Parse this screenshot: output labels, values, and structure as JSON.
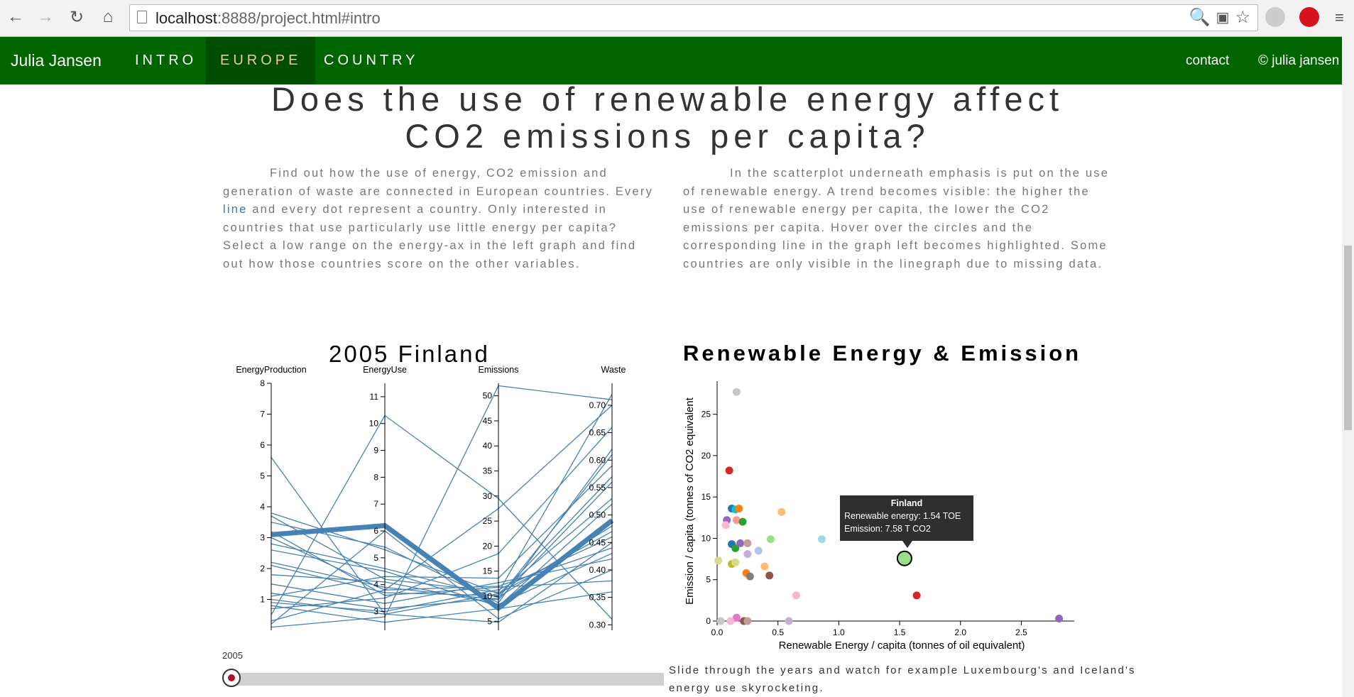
{
  "browser": {
    "url_host": "localhost",
    "url_rest": ":8888/project.html#intro"
  },
  "nav": {
    "brand": "Julia Jansen",
    "links": [
      "INTRO",
      "EUROPE",
      "COUNTRY"
    ],
    "active": "EUROPE",
    "contact": "contact",
    "copyright": "© julia jansen"
  },
  "page": {
    "title_line1": "Does the use of renewable energy affect",
    "title_line2": "CO2 emissions per capita?",
    "intro_left_1": "Find out how the use of energy, CO2 emission and generation of waste are connected in European countries. Every ",
    "intro_left_link": "line",
    "intro_left_2": " and every dot represent a country. Only interested in countries that use particularly use little energy per capita? Select a low range on the energy-ax in the left graph and find out how those countries score on the other variables.",
    "intro_right": "In the scatterplot underneath emphasis is put on the use of renewable energy. A trend becomes visible: the higher the use of renewable energy per capita, the lower the CO2 emissions per capita. Hover over the circles and the corresponding line in the graph left becomes highlighted. Some countries are only visible in the linegraph due to missing data.",
    "left_heading": "2005 Finland",
    "right_heading": "Renewable Energy & Emission",
    "slider_year": "2005",
    "slide_note_1": "Slide through the years and watch for example Luxembourg's and Iceland's",
    "slide_note_2": "energy use skyrocketing."
  },
  "tooltip": {
    "name": "Finland",
    "line1": "Renewable energy: 1.54 TOE",
    "line2": "Emission: 7.58 T CO2"
  },
  "chart_data": [
    {
      "type": "line",
      "subtype": "parallel-coordinates",
      "axes": [
        {
          "name": "EnergyProduction",
          "ticks": [
            1,
            2,
            3,
            4,
            5,
            6,
            7,
            8
          ],
          "range": [
            0,
            8
          ]
        },
        {
          "name": "EnergyUse",
          "ticks": [
            3,
            4,
            5,
            6,
            7,
            8,
            9,
            10,
            11
          ],
          "range": [
            2.3,
            11.5
          ]
        },
        {
          "name": "Emissions",
          "ticks": [
            5,
            10,
            15,
            20,
            25,
            30,
            35,
            40,
            45,
            50
          ],
          "range": [
            3.2,
            52.5
          ]
        },
        {
          "name": "Waste",
          "ticks": [
            "0.30",
            "0.35",
            "0.40",
            "0.45",
            "0.50",
            "0.55",
            "0.60",
            "0.65",
            "0.70"
          ],
          "range": [
            0.29,
            0.74
          ]
        }
      ],
      "highlighted": {
        "name": "Finland",
        "values": [
          3.1,
          6.2,
          7.6,
          0.49
        ]
      },
      "lines": [
        [
          5.6,
          2.9,
          4.8,
          0.45
        ],
        [
          3.8,
          5.3,
          10.5,
          0.53
        ],
        [
          3.7,
          4.2,
          10.8,
          0.72
        ],
        [
          3.5,
          5.4,
          8.7,
          0.62
        ],
        [
          3.2,
          3.6,
          11.8,
          0.38
        ],
        [
          3.0,
          3.8,
          12.0,
          0.44
        ],
        [
          2.8,
          4.6,
          9.8,
          0.48
        ],
        [
          2.6,
          4.5,
          8.0,
          0.52
        ],
        [
          2.2,
          3.9,
          9.3,
          0.56
        ],
        [
          2.1,
          3.7,
          10.1,
          0.57
        ],
        [
          1.8,
          4.1,
          8.4,
          0.43
        ],
        [
          1.5,
          3.3,
          12.7,
          0.42
        ],
        [
          1.2,
          3.1,
          9.6,
          0.61
        ],
        [
          1.1,
          4.3,
          13.6,
          0.59
        ],
        [
          1.0,
          2.9,
          10.5,
          0.47
        ],
        [
          0.9,
          3.0,
          11.3,
          0.46
        ],
        [
          0.8,
          2.6,
          7.5,
          0.36
        ],
        [
          0.7,
          3.5,
          18.5,
          0.66
        ],
        [
          0.5,
          10.3,
          29.5,
          0.31
        ],
        [
          0.3,
          3.8,
          27.5,
          0.7
        ],
        [
          0.2,
          6.0,
          5.5,
          0.4
        ],
        [
          0.1,
          2.8,
          52.0,
          0.71
        ]
      ]
    },
    {
      "type": "scatter",
      "title": "Renewable Energy & Emission",
      "xlabel": "Renewable Energy / capita (tonnes of oil equivalent)",
      "ylabel": "Emission / capita (tonnes of CO2 equivalent",
      "xlim": [
        0,
        2.9
      ],
      "ylim": [
        0,
        29
      ],
      "xticks": [
        "0.0",
        "0.5",
        "1.0",
        "1.5",
        "2.0",
        "2.5"
      ],
      "yticks": [
        "0",
        "5",
        "10",
        "15",
        "20",
        "25"
      ],
      "points": [
        {
          "x": 0.16,
          "y": 27.7,
          "color": "#c7c7c7"
        },
        {
          "x": 0.1,
          "y": 18.2,
          "color": "#d62728"
        },
        {
          "x": 0.12,
          "y": 13.6,
          "color": "#1f77b4"
        },
        {
          "x": 0.15,
          "y": 13.5,
          "color": "#17becf"
        },
        {
          "x": 0.18,
          "y": 13.6,
          "color": "#ff7f0e"
        },
        {
          "x": 0.08,
          "y": 12.2,
          "color": "#9467bd"
        },
        {
          "x": 0.07,
          "y": 11.6,
          "color": "#f7b6d2"
        },
        {
          "x": 0.16,
          "y": 12.2,
          "color": "#ff9896"
        },
        {
          "x": 0.21,
          "y": 12.0,
          "color": "#2ca02c"
        },
        {
          "x": 0.53,
          "y": 13.2,
          "color": "#ffbb78"
        },
        {
          "x": 0.12,
          "y": 9.3,
          "color": "#1f77b4"
        },
        {
          "x": 0.15,
          "y": 8.8,
          "color": "#2ca02c"
        },
        {
          "x": 0.19,
          "y": 9.4,
          "color": "#9467bd"
        },
        {
          "x": 0.25,
          "y": 9.4,
          "color": "#c49c94"
        },
        {
          "x": 0.44,
          "y": 9.9,
          "color": "#98df8a"
        },
        {
          "x": 0.34,
          "y": 8.5,
          "color": "#aec7e8"
        },
        {
          "x": 0.25,
          "y": 8.1,
          "color": "#c5b0d5"
        },
        {
          "x": 0.86,
          "y": 9.9,
          "color": "#9edae5"
        },
        {
          "x": 0.12,
          "y": 6.9,
          "color": "#bcbd22"
        },
        {
          "x": 0.15,
          "y": 7.1,
          "color": "#dbdb8d"
        },
        {
          "x": 0.01,
          "y": 7.3,
          "color": "#dbdb8d"
        },
        {
          "x": 0.39,
          "y": 6.6,
          "color": "#ffbb78"
        },
        {
          "x": 0.24,
          "y": 5.8,
          "color": "#ff7f0e"
        },
        {
          "x": 0.27,
          "y": 5.4,
          "color": "#7f7f7f"
        },
        {
          "x": 0.43,
          "y": 5.5,
          "color": "#8c564b"
        },
        {
          "x": 1.54,
          "y": 7.58,
          "color": "#98df8a",
          "name": "Finland",
          "highlighted": true
        },
        {
          "x": 1.64,
          "y": 3.1,
          "color": "#d62728"
        },
        {
          "x": 0.65,
          "y": 3.1,
          "color": "#f7b6d2"
        },
        {
          "x": 0.16,
          "y": 0.4,
          "color": "#e377c2"
        },
        {
          "x": 0.11,
          "y": 0.0,
          "color": "#f7b6d2"
        },
        {
          "x": 0.03,
          "y": 0.0,
          "color": "#c7c7c7"
        },
        {
          "x": 0.22,
          "y": 0.0,
          "color": "#8c564b"
        },
        {
          "x": 0.25,
          "y": 0.0,
          "color": "#c49c94"
        },
        {
          "x": 0.59,
          "y": 0.0,
          "color": "#c5b0d5"
        },
        {
          "x": 2.81,
          "y": 0.3,
          "color": "#9467bd"
        }
      ]
    }
  ]
}
